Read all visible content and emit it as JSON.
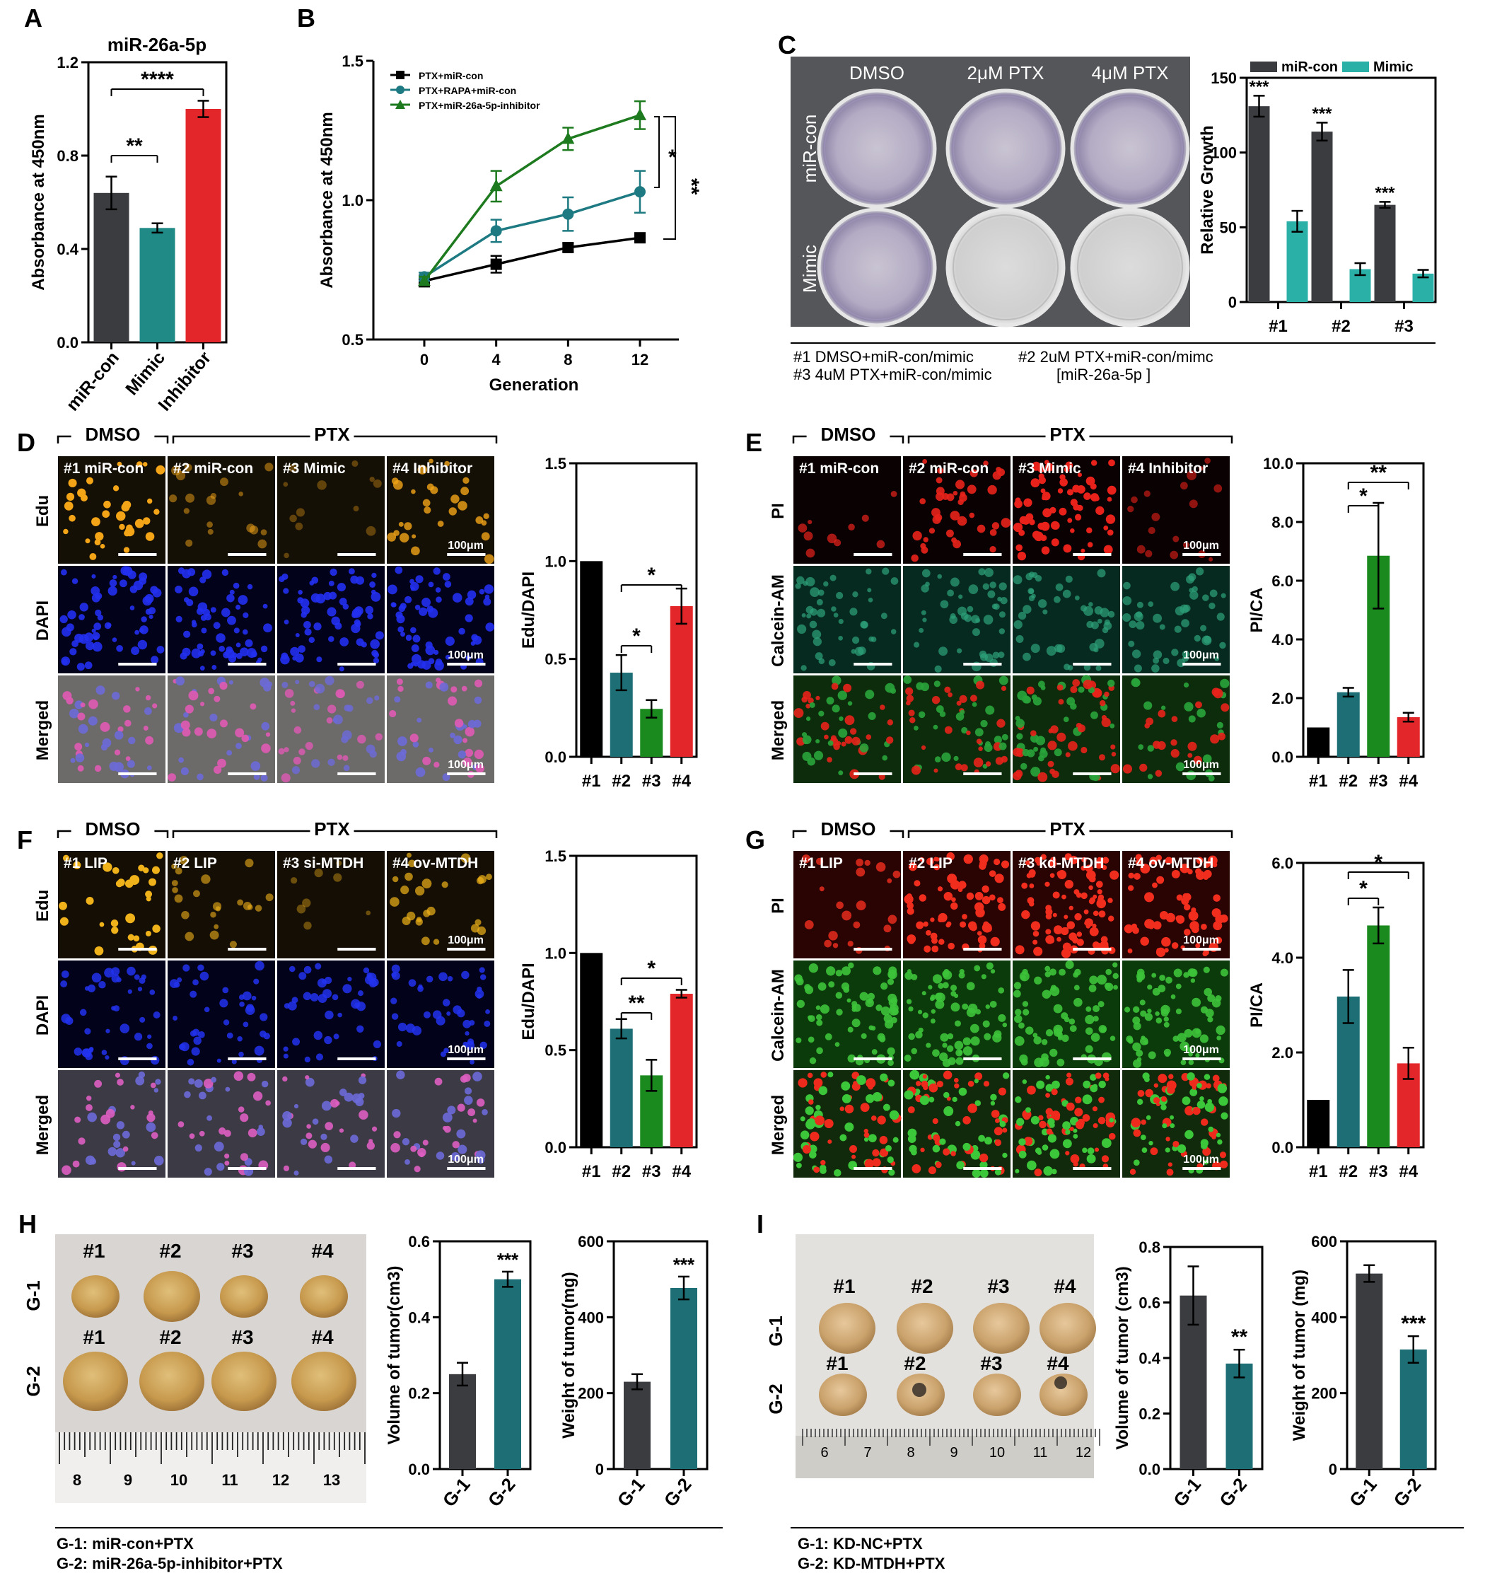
{
  "panel_letters": [
    "A",
    "B",
    "C",
    "D",
    "E",
    "F",
    "G",
    "H",
    "I"
  ],
  "colors": {
    "black": "#000000",
    "dark_grey": "#3b3c40",
    "teal": "#1f8a86",
    "teal_dark": "#1d6f75",
    "teal_light": "#2bb0a8",
    "red": "#e3262a",
    "green": "#1a8a1e",
    "green_line": "#1e7a1e",
    "teal_line": "#1e7a82"
  },
  "chart_data": [
    {
      "id": "A",
      "type": "bar",
      "title": "miR-26a-5p",
      "ylabel": "Absorbance at 450nm",
      "categories": [
        "miR-con",
        "Mimic",
        "Inhibitor"
      ],
      "values": [
        0.64,
        0.49,
        1.0
      ],
      "errors": [
        0.07,
        0.02,
        0.035
      ],
      "bar_colors": [
        "#3b3c40",
        "#1f8a86",
        "#e3262a"
      ],
      "ylim": [
        0.0,
        1.2
      ],
      "yticks": [
        0.0,
        0.4,
        0.8,
        1.2
      ],
      "ytick_labels": [
        "0.0",
        "0.4",
        "0.8",
        "1.2"
      ],
      "significance": [
        {
          "pair": [
            0,
            1
          ],
          "label": "**"
        },
        {
          "pair": [
            0,
            2
          ],
          "label": "****"
        }
      ]
    },
    {
      "id": "B",
      "type": "line",
      "ylabel": "Absorbance at 450nm",
      "xlabel": "Generation",
      "x": [
        0,
        4,
        8,
        12
      ],
      "xtick_labels": [
        "0",
        "4",
        "8",
        "12"
      ],
      "ylim": [
        0.5,
        1.5
      ],
      "yticks": [
        0.5,
        1.0,
        1.5
      ],
      "ytick_labels": [
        "0.5",
        "1.0",
        "1.5"
      ],
      "legend_position": "top-left",
      "series": [
        {
          "name": "PTX+miR-con",
          "values": [
            0.71,
            0.77,
            0.83,
            0.865
          ],
          "errors": [
            0.02,
            0.03,
            0.015,
            0.012
          ],
          "color": "#000000",
          "marker": "square"
        },
        {
          "name": "PTX+RAPA+miR-con",
          "values": [
            0.725,
            0.89,
            0.95,
            1.03
          ],
          "errors": [
            0.015,
            0.04,
            0.06,
            0.075
          ],
          "color": "#1e7a82",
          "marker": "circle"
        },
        {
          "name": "PTX+miR-26a-5p-inhibitor",
          "values": [
            0.71,
            1.05,
            1.22,
            1.305
          ],
          "errors": [
            0.015,
            0.055,
            0.04,
            0.05
          ],
          "color": "#1e7a1e",
          "marker": "triangle"
        }
      ],
      "significance": [
        {
          "label": "*"
        },
        {
          "label": "**"
        }
      ]
    },
    {
      "id": "C",
      "type": "bar",
      "ylabel": "Relative Growth",
      "categories": [
        "#1",
        "#2",
        "#3"
      ],
      "ylim": [
        0,
        150
      ],
      "yticks": [
        0,
        50,
        100,
        150
      ],
      "ytick_labels": [
        "0",
        "50",
        "100",
        "150"
      ],
      "legend_position": "top",
      "series": [
        {
          "name": "miR-con",
          "values": [
            131,
            114,
            65
          ],
          "errors": [
            7,
            6,
            2
          ],
          "color": "#3b3c40"
        },
        {
          "name": "Mimic",
          "values": [
            54,
            22,
            19
          ],
          "errors": [
            7,
            4,
            2.5
          ],
          "color": "#2bb0a8"
        }
      ],
      "significance": [
        "***",
        "***",
        "***"
      ]
    },
    {
      "id": "D",
      "type": "bar",
      "ylabel": "Edu/DAPI",
      "categories": [
        "#1",
        "#2",
        "#3",
        "#4"
      ],
      "values": [
        1.0,
        0.43,
        0.245,
        0.77
      ],
      "errors": [
        0,
        0.09,
        0.045,
        0.09
      ],
      "bar_colors": [
        "#000000",
        "#1d6f75",
        "#1a8a1e",
        "#e3262a"
      ],
      "ylim": [
        0.0,
        1.5
      ],
      "yticks": [
        0.0,
        0.5,
        1.0,
        1.5
      ],
      "ytick_labels": [
        "0.0",
        "0.5",
        "1.0",
        "1.5"
      ],
      "significance": [
        {
          "pair": [
            1,
            2
          ],
          "label": "*"
        },
        {
          "pair": [
            1,
            3
          ],
          "label": "*"
        }
      ]
    },
    {
      "id": "E",
      "type": "bar",
      "ylabel": "PI/CA",
      "categories": [
        "#1",
        "#2",
        "#3",
        "#4"
      ],
      "values": [
        1.0,
        2.2,
        6.85,
        1.35
      ],
      "errors": [
        0,
        0.15,
        1.8,
        0.15
      ],
      "bar_colors": [
        "#000000",
        "#1d6f75",
        "#1a8a1e",
        "#e3262a"
      ],
      "ylim": [
        0.0,
        10.0
      ],
      "yticks": [
        0.0,
        2.0,
        4.0,
        6.0,
        8.0,
        10.0
      ],
      "ytick_labels": [
        "0.0",
        "2.0",
        "4.0",
        "6.0",
        "8.0",
        "10.0"
      ],
      "significance": [
        {
          "pair": [
            1,
            2
          ],
          "label": "*"
        },
        {
          "pair": [
            1,
            3
          ],
          "label": "**"
        }
      ]
    },
    {
      "id": "F",
      "type": "bar",
      "ylabel": "Edu/DAPI",
      "categories": [
        "#1",
        "#2",
        "#3",
        "#4"
      ],
      "values": [
        1.0,
        0.61,
        0.37,
        0.79
      ],
      "errors": [
        0,
        0.05,
        0.08,
        0.02
      ],
      "bar_colors": [
        "#000000",
        "#1d6f75",
        "#1a8a1e",
        "#e3262a"
      ],
      "ylim": [
        0.0,
        1.5
      ],
      "yticks": [
        0.0,
        0.5,
        1.0,
        1.5
      ],
      "ytick_labels": [
        "0.0",
        "0.5",
        "1.0",
        "1.5"
      ],
      "significance": [
        {
          "pair": [
            1,
            2
          ],
          "label": "**"
        },
        {
          "pair": [
            1,
            3
          ],
          "label": "*"
        }
      ]
    },
    {
      "id": "G",
      "type": "bar",
      "ylabel": "PI/CA",
      "categories": [
        "#1",
        "#2",
        "#3",
        "#4"
      ],
      "values": [
        1.0,
        3.18,
        4.68,
        1.77
      ],
      "errors": [
        0,
        0.56,
        0.38,
        0.33
      ],
      "bar_colors": [
        "#000000",
        "#1d6f75",
        "#1a8a1e",
        "#e3262a"
      ],
      "ylim": [
        0.0,
        6.0
      ],
      "yticks": [
        0.0,
        2.0,
        4.0,
        6.0
      ],
      "ytick_labels": [
        "0.0",
        "2.0",
        "4.0",
        "6.0"
      ],
      "significance": [
        {
          "pair": [
            1,
            2
          ],
          "label": "*"
        },
        {
          "pair": [
            1,
            3
          ],
          "label": "*"
        }
      ]
    },
    {
      "id": "H1",
      "type": "bar",
      "ylabel": "Volume of tumor(cm3)",
      "categories": [
        "G-1",
        "G-2"
      ],
      "values": [
        0.25,
        0.5
      ],
      "errors": [
        0.03,
        0.02
      ],
      "bar_colors": [
        "#3b3c40",
        "#1d6f75"
      ],
      "ylim": [
        0.0,
        0.6
      ],
      "yticks": [
        0.0,
        0.2,
        0.4,
        0.6
      ],
      "ytick_labels": [
        "0.0",
        "0.2",
        "0.4",
        "0.6"
      ],
      "significance": [
        "",
        "***"
      ]
    },
    {
      "id": "H2",
      "type": "bar",
      "ylabel": "Weight of tumor(mg)",
      "categories": [
        "G-1",
        "G-2"
      ],
      "values": [
        230,
        477
      ],
      "errors": [
        20,
        30
      ],
      "bar_colors": [
        "#3b3c40",
        "#1d6f75"
      ],
      "ylim": [
        0,
        600
      ],
      "yticks": [
        0,
        200,
        400,
        600
      ],
      "ytick_labels": [
        "0",
        "200",
        "400",
        "600"
      ],
      "significance": [
        "",
        "***"
      ]
    },
    {
      "id": "I1",
      "type": "bar",
      "ylabel": "Volume of tumor (cm3)",
      "categories": [
        "G-1",
        "G-2"
      ],
      "values": [
        0.625,
        0.38
      ],
      "errors": [
        0.105,
        0.05
      ],
      "bar_colors": [
        "#3b3c40",
        "#1d6f75"
      ],
      "ylim": [
        0.0,
        0.8
      ],
      "yticks": [
        0.0,
        0.2,
        0.4,
        0.6,
        0.8
      ],
      "ytick_labels": [
        "0.0",
        "0.2",
        "0.4",
        "0.6",
        "0.8"
      ],
      "significance": [
        "",
        "**"
      ]
    },
    {
      "id": "I2",
      "type": "bar",
      "ylabel": "Weight of tumor (mg)",
      "categories": [
        "G-1",
        "G-2"
      ],
      "values": [
        515,
        315
      ],
      "errors": [
        22,
        35
      ],
      "bar_colors": [
        "#3b3c40",
        "#1d6f75"
      ],
      "ylim": [
        0,
        600
      ],
      "yticks": [
        0,
        200,
        400,
        600
      ],
      "ytick_labels": [
        "0",
        "200",
        "400",
        "600"
      ],
      "significance": [
        "",
        "***"
      ]
    }
  ],
  "panel_c_images": {
    "column_labels": [
      "DMSO",
      "2μM PTX",
      "4μM PTX"
    ],
    "row_labels": [
      "miR-con",
      "Mimic"
    ],
    "legend_lines": [
      "#1 DMSO+miR-con/mimic",
      "#2 2uM PTX+miR-con/mimc",
      "#3 4uM PTX+miR-con/mimic",
      "[miR-26a-5p ]"
    ]
  },
  "panel_d_images": {
    "group_labels": [
      "DMSO",
      "PTX"
    ],
    "column_labels": [
      "#1 miR-con",
      "#2 miR-con",
      "#3 Mimic",
      "#4 Inhibitor"
    ],
    "row_labels": [
      "Edu",
      "DAPI",
      "Merged"
    ],
    "scale_bar": "100μm"
  },
  "panel_e_images": {
    "group_labels": [
      "DMSO",
      "PTX"
    ],
    "column_labels": [
      "#1 miR-con",
      "#2 miR-con",
      "#3 Mimic",
      "#4 Inhibitor"
    ],
    "row_labels": [
      "PI",
      "Calcein-AM",
      "Merged"
    ],
    "scale_bar": "100μm"
  },
  "panel_f_images": {
    "group_labels": [
      "DMSO",
      "PTX"
    ],
    "column_labels": [
      "#1 LIP",
      "#2  LIP",
      "#3 si-MTDH",
      "#4 ov-MTDH"
    ],
    "row_labels": [
      "Edu",
      "DAPI",
      "Merged"
    ],
    "scale_bar": "100μm"
  },
  "panel_g_images": {
    "group_labels": [
      "DMSO",
      "PTX"
    ],
    "column_labels": [
      "#1 LIP",
      "#2  LIP",
      "#3 kd-MTDH",
      "#4 ov-MTDH"
    ],
    "row_labels": [
      "PI",
      "Calcein-AM",
      "Merged"
    ],
    "scale_bar": "100μm"
  },
  "panel_h_photo": {
    "row_labels": [
      "G-1",
      "G-2"
    ],
    "tumor_labels": [
      "#1",
      "#2",
      "#3",
      "#4"
    ],
    "ruler_numbers": [
      "8",
      "9",
      "10",
      "11",
      "12",
      "13"
    ],
    "footnote_lines": [
      "G-1: miR-con+PTX",
      "G-2: miR-26a-5p-inhibitor+PTX"
    ]
  },
  "panel_i_photo": {
    "row_labels": [
      "G-1",
      "G-2"
    ],
    "tumor_labels": [
      "#1",
      "#2",
      "#3",
      "#4"
    ],
    "ruler_numbers": [
      "6",
      "7",
      "8",
      "9",
      "10",
      "11",
      "12"
    ],
    "footnote_lines": [
      "G-1: KD-NC+PTX",
      "G-2: KD-MTDH+PTX"
    ]
  }
}
